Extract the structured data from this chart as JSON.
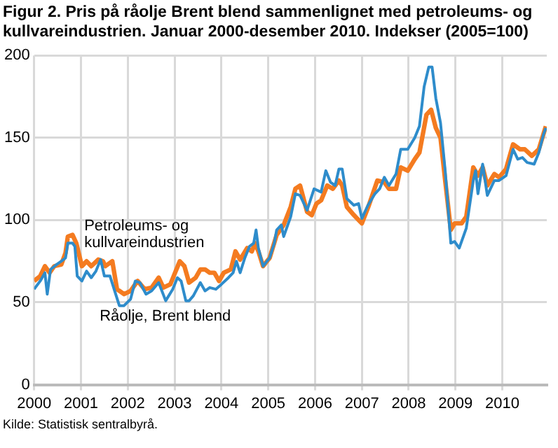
{
  "chart_data": {
    "type": "line",
    "title": "Figur 2. Pris på råolje Brent blend sammenlignet med petroleums- og kullvareindustrien. Januar 2000-desember 2010. Indekser (2005=100)",
    "annotations": [
      "Kilde: Statistisk sentralbyrå."
    ],
    "xlim": [
      2000,
      2010.95
    ],
    "xticks": [
      2000,
      2001,
      2002,
      2003,
      2004,
      2005,
      2006,
      2007,
      2008,
      2009,
      2010
    ],
    "ylim": [
      0,
      200
    ],
    "yticks": [
      0,
      50,
      100,
      150,
      200
    ],
    "grid": true,
    "legend": false,
    "marker": "none",
    "line_style": "solid",
    "series": [
      {
        "name": "Råolje, Brent blend",
        "color": "#2e8ccb",
        "x": [
          2000.0,
          2000.13,
          2000.23,
          2000.28,
          2000.35,
          2000.48,
          2000.58,
          2000.67,
          2000.72,
          2000.82,
          2000.87,
          2000.92,
          2001.02,
          2001.12,
          2001.22,
          2001.32,
          2001.42,
          2001.5,
          2001.62,
          2001.72,
          2001.82,
          2001.92,
          2002.06,
          2002.16,
          2002.26,
          2002.39,
          2002.51,
          2002.66,
          2002.81,
          2002.96,
          2003.06,
          2003.14,
          2003.24,
          2003.31,
          2003.4,
          2003.55,
          2003.65,
          2003.75,
          2003.88,
          2004.0,
          2004.15,
          2004.25,
          2004.32,
          2004.4,
          2004.5,
          2004.6,
          2004.69,
          2004.74,
          2004.79,
          2004.89,
          2005.03,
          2005.13,
          2005.18,
          2005.28,
          2005.33,
          2005.48,
          2005.58,
          2005.68,
          2005.83,
          2005.98,
          2006.13,
          2006.23,
          2006.33,
          2006.43,
          2006.51,
          2006.58,
          2006.68,
          2006.83,
          2006.93,
          2007.0,
          2007.13,
          2007.28,
          2007.38,
          2007.48,
          2007.58,
          2007.73,
          2007.83,
          2007.98,
          2008.13,
          2008.23,
          2008.33,
          2008.43,
          2008.5,
          2008.58,
          2008.68,
          2008.78,
          2008.9,
          2008.98,
          2009.08,
          2009.23,
          2009.38,
          2009.43,
          2009.48,
          2009.58,
          2009.68,
          2009.83,
          2009.93,
          2010.08,
          2010.23,
          2010.33,
          2010.43,
          2010.53,
          2010.68,
          2010.78,
          2010.88,
          2010.93
        ],
        "values": [
          58,
          63,
          68,
          55,
          70,
          73,
          75,
          77,
          86,
          86,
          84,
          66,
          63,
          69,
          65,
          69,
          76,
          66,
          66,
          57,
          48,
          48,
          52,
          63,
          62,
          55,
          57,
          62,
          51,
          58,
          65,
          63,
          51,
          51,
          54,
          62,
          57,
          59,
          58,
          61,
          65,
          68,
          75,
          68,
          77,
          84,
          86,
          94,
          83,
          72,
          77,
          86,
          94,
          97,
          90,
          102,
          116,
          115,
          106,
          119,
          117,
          130,
          123,
          121,
          131,
          131,
          113,
          109,
          110,
          101,
          109,
          116,
          119,
          126,
          121,
          128,
          143,
          143,
          150,
          157,
          181,
          193,
          193,
          174,
          159,
          130,
          86,
          87,
          83,
          95,
          124,
          130,
          116,
          134,
          115,
          124,
          124,
          127,
          143,
          137,
          138,
          135,
          134,
          141,
          152,
          156
        ]
      },
      {
        "name": "Petroleums- og kullvareindustrien",
        "color": "#f47b20",
        "x": [
          2000.0,
          2000.13,
          2000.23,
          2000.33,
          2000.43,
          2000.58,
          2000.67,
          2000.72,
          2000.82,
          2000.9,
          2001.02,
          2001.12,
          2001.22,
          2001.37,
          2001.47,
          2001.52,
          2001.67,
          2001.77,
          2001.92,
          2002.06,
          2002.21,
          2002.36,
          2002.51,
          2002.66,
          2002.76,
          2002.91,
          2003.01,
          2003.11,
          2003.21,
          2003.31,
          2003.45,
          2003.55,
          2003.65,
          2003.75,
          2003.85,
          2003.95,
          2004.05,
          2004.2,
          2004.3,
          2004.4,
          2004.55,
          2004.65,
          2004.72,
          2004.79,
          2004.89,
          2005.03,
          2005.18,
          2005.33,
          2005.48,
          2005.58,
          2005.68,
          2005.83,
          2005.93,
          2006.03,
          2006.13,
          2006.26,
          2006.38,
          2006.51,
          2006.58,
          2006.68,
          2006.83,
          2007.0,
          2007.15,
          2007.33,
          2007.48,
          2007.58,
          2007.73,
          2007.83,
          2007.98,
          2008.13,
          2008.23,
          2008.38,
          2008.48,
          2008.58,
          2008.68,
          2008.78,
          2008.9,
          2008.98,
          2009.13,
          2009.23,
          2009.38,
          2009.48,
          2009.58,
          2009.68,
          2009.83,
          2009.93,
          2010.08,
          2010.23,
          2010.38,
          2010.48,
          2010.63,
          2010.78,
          2010.93
        ],
        "values": [
          63,
          66,
          72,
          68,
          72,
          73,
          80,
          90,
          91,
          86,
          72,
          75,
          72,
          76,
          75,
          72,
          75,
          58,
          55,
          57,
          63,
          58,
          59,
          65,
          59,
          61,
          68,
          75,
          72,
          62,
          65,
          70,
          70,
          68,
          68,
          63,
          68,
          70,
          81,
          76,
          83,
          81,
          86,
          81,
          72,
          77,
          91,
          97,
          108,
          119,
          121,
          105,
          103,
          110,
          112,
          121,
          119,
          124,
          121,
          108,
          103,
          98,
          109,
          124,
          123,
          119,
          119,
          132,
          130,
          137,
          141,
          164,
          167,
          156,
          150,
          124,
          94,
          98,
          98,
          102,
          132,
          127,
          132,
          121,
          128,
          126,
          131,
          146,
          143,
          143,
          139,
          143,
          157
        ]
      }
    ]
  }
}
